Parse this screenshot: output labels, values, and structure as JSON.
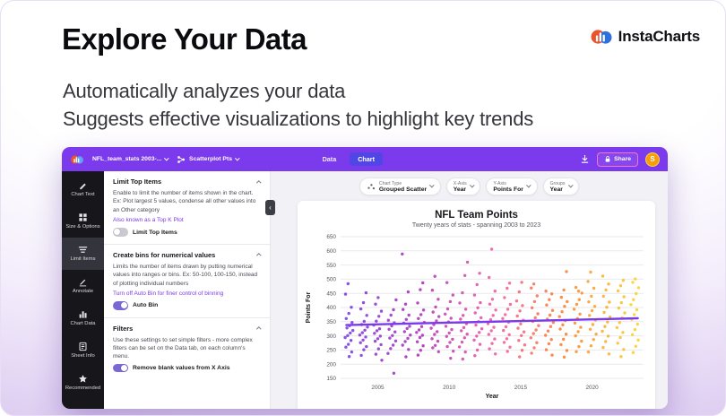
{
  "hero": {
    "title": "Explore Your Data",
    "brand": "InstaCharts",
    "subtitle1": "Automatically analyzes your data",
    "subtitle2": "Suggests effective visualizations to highlight key trends"
  },
  "topbar": {
    "file_menu": "NFL_team_stats 2003-...",
    "chart_menu": "Scatterplot Pts",
    "tabs": [
      {
        "label": "Data",
        "active": false
      },
      {
        "label": "Chart",
        "active": true
      }
    ],
    "share_label": "Share",
    "avatar_initial": "S",
    "icons": [
      "cloud-logo-icon",
      "share-nodes-icon",
      "download-icon",
      "lock-icon"
    ]
  },
  "sidebar": {
    "items": [
      {
        "label": "Chart Text",
        "icon": "pencil-icon",
        "active": false
      },
      {
        "label": "Size & Options",
        "icon": "grid-icon",
        "active": false
      },
      {
        "label": "Limit Items",
        "icon": "list-icon",
        "active": true
      },
      {
        "label": "Annotate",
        "icon": "pen-icon",
        "active": false
      },
      {
        "label": "Chart Data",
        "icon": "bar-chart-icon",
        "active": false
      },
      {
        "label": "Sheet Info",
        "icon": "sheet-icon",
        "active": false
      },
      {
        "label": "Recommended",
        "icon": "star-icon",
        "active": false
      }
    ]
  },
  "panel": {
    "sections": [
      {
        "title": "Limit Top Items",
        "body": "Enable to limit the number of items shown in the chart. Ex: Plot largest 5 values, condense all other values into an Other category",
        "link": "Also known as a Top K Plot",
        "toggle_label": "Limit Top Items",
        "toggle_on": false
      },
      {
        "title": "Create bins for numerical values",
        "body": "Limits the number of items drawn by putting numerical values into ranges or bins. Ex: 50-100, 100-150, instead of plotting individual numbers",
        "link": "Turn off Auto Bin for finer control of binning",
        "toggle_label": "Auto Bin",
        "toggle_on": true
      },
      {
        "title": "Filters",
        "body": "Use these settings to set simple filters - more complex filters can be set on the Data tab, on each column's menu.",
        "toggle_label": "Remove blank values from X Axis",
        "toggle_on": true
      }
    ]
  },
  "controls": {
    "dropdowns": [
      {
        "label": "Chart Type",
        "value": "Grouped Scatter",
        "icon": "scatter-icon"
      },
      {
        "label": "X-Axis",
        "value": "Year"
      },
      {
        "label": "Y-Axis",
        "value": "Points For"
      },
      {
        "label": "Groups",
        "value": "Year"
      }
    ]
  },
  "chart_data": {
    "type": "scatter",
    "title": "NFL Team Points",
    "subtitle": "Twenty years of stats - spanning 2003 to 2023",
    "xlabel": "Year",
    "ylabel": "Points For",
    "xlim": [
      2002.4,
      2023.6
    ],
    "ylim": [
      150,
      650
    ],
    "y_ticks": [
      150,
      200,
      250,
      300,
      350,
      400,
      450,
      500,
      550,
      600,
      650
    ],
    "x_ticks": [
      2005,
      2010,
      2015,
      2020
    ],
    "grid": true,
    "legend": "none",
    "color_stops": [
      "#6D28D9",
      "#A21CAF",
      "#EC4899",
      "#F97316",
      "#FACC15"
    ],
    "trend_line": {
      "x": [
        2002.8,
        2023.2
      ],
      "y": [
        338,
        362
      ],
      "color": "#7C3AED"
    },
    "series": [
      {
        "year": 2003,
        "values": [
          227,
          243,
          260,
          270,
          284,
          294,
          301,
          310,
          319,
          328,
          336,
          347,
          361,
          379,
          401,
          447,
          484
        ]
      },
      {
        "year": 2004,
        "values": [
          231,
          251,
          262,
          276,
          285,
          296,
          303,
          311,
          320,
          331,
          340,
          351,
          372,
          395,
          417,
          452
        ]
      },
      {
        "year": 2005,
        "values": [
          214,
          235,
          254,
          269,
          281,
          290,
          299,
          309,
          318,
          325,
          338,
          352,
          369,
          387,
          412,
          435
        ]
      },
      {
        "year": 2006,
        "values": [
          168,
          238,
          255,
          267,
          282,
          292,
          301,
          314,
          323,
          335,
          346,
          355,
          373,
          392,
          427
        ]
      },
      {
        "year": 2007,
        "values": [
          226,
          252,
          267,
          280,
          291,
          303,
          315,
          326,
          334,
          345,
          358,
          373,
          393,
          412,
          455,
          589
        ]
      },
      {
        "year": 2008,
        "values": [
          232,
          249,
          265,
          279,
          294,
          302,
          312,
          321,
          333,
          347,
          361,
          375,
          391,
          416,
          463,
          487
        ]
      },
      {
        "year": 2009,
        "values": [
          244,
          258,
          266,
          281,
          290,
          305,
          315,
          327,
          340,
          353,
          368,
          384,
          402,
          429,
          461,
          510
        ]
      },
      {
        "year": 2010,
        "values": [
          221,
          246,
          262,
          277,
          288,
          298,
          310,
          322,
          334,
          349,
          362,
          377,
          395,
          421,
          444,
          488
        ]
      },
      {
        "year": 2011,
        "values": [
          218,
          243,
          261,
          278,
          293,
          306,
          318,
          329,
          343,
          359,
          372,
          394,
          416,
          452,
          513,
          560
        ]
      },
      {
        "year": 2012,
        "values": [
          230,
          250,
          270,
          285,
          299,
          312,
          325,
          338,
          350,
          364,
          381,
          399,
          417,
          444,
          481,
          521
        ]
      },
      {
        "year": 2013,
        "values": [
          236,
          254,
          273,
          289,
          305,
          318,
          330,
          343,
          357,
          372,
          391,
          412,
          429,
          458,
          506,
          606
        ]
      },
      {
        "year": 2014,
        "values": [
          245,
          260,
          277,
          290,
          304,
          319,
          332,
          348,
          361,
          375,
          394,
          411,
          435,
          468,
          486
        ]
      },
      {
        "year": 2015,
        "values": [
          226,
          249,
          268,
          284,
          301,
          314,
          327,
          342,
          355,
          370,
          388,
          407,
          423,
          455,
          489
        ]
      },
      {
        "year": 2016,
        "values": [
          239,
          258,
          276,
          293,
          308,
          321,
          336,
          351,
          364,
          378,
          399,
          421,
          441,
          469,
          483
        ]
      },
      {
        "year": 2017,
        "values": [
          232,
          251,
          272,
          287,
          302,
          317,
          333,
          347,
          359,
          373,
          390,
          409,
          428,
          448,
          458
        ]
      },
      {
        "year": 2018,
        "values": [
          225,
          248,
          269,
          288,
          306,
          324,
          339,
          354,
          368,
          385,
          404,
          421,
          436,
          462,
          527
        ]
      },
      {
        "year": 2019,
        "values": [
          244,
          262,
          281,
          300,
          315,
          330,
          345,
          361,
          377,
          394,
          411,
          428,
          451,
          471,
          458
        ]
      },
      {
        "year": 2020,
        "values": [
          243,
          265,
          287,
          306,
          323,
          340,
          356,
          372,
          389,
          404,
          420,
          440,
          468,
          492,
          525
        ]
      },
      {
        "year": 2021,
        "values": [
          236,
          259,
          280,
          299,
          316,
          333,
          349,
          366,
          383,
          401,
          419,
          440,
          462,
          483,
          511
        ]
      },
      {
        "year": 2022,
        "values": [
          227,
          252,
          274,
          294,
          312,
          329,
          347,
          363,
          381,
          398,
          417,
          438,
          459,
          477,
          496
        ]
      },
      {
        "year": 2023,
        "values": [
          241,
          263,
          285,
          304,
          322,
          341,
          358,
          375,
          392,
          410,
          428,
          449,
          470,
          489,
          501
        ]
      }
    ]
  }
}
